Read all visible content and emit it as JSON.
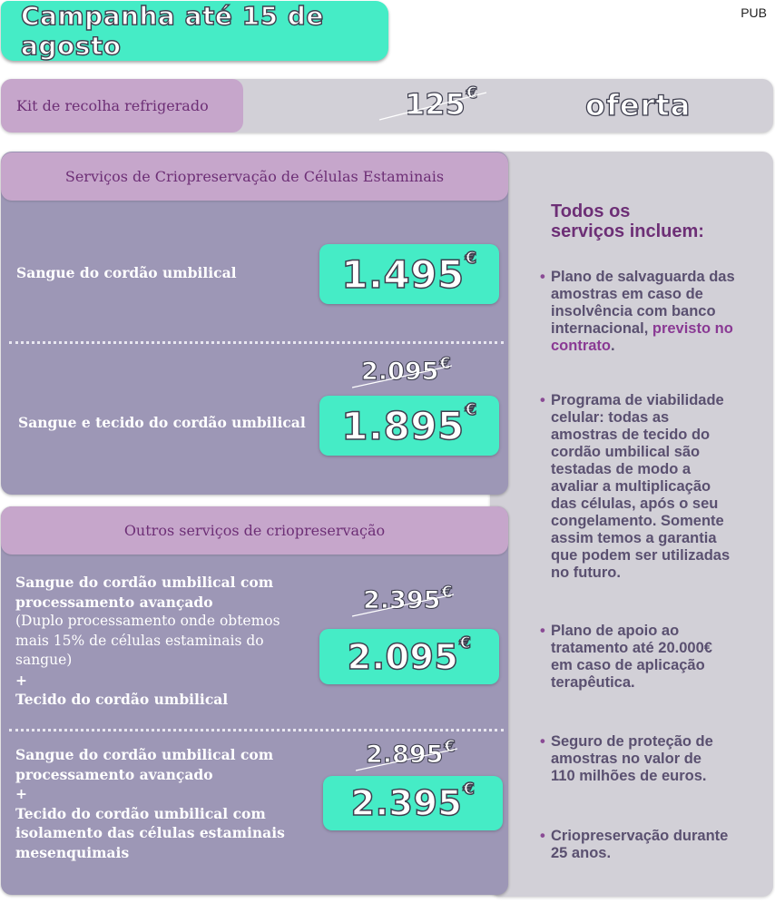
{
  "pub_label": "PUB",
  "campaign_text": "Campanha até 15 de agosto",
  "kit": {
    "label": "Kit de recolha refrigerado",
    "old_price": "125",
    "currency": "€",
    "offer": "oferta"
  },
  "stem": {
    "header": "Serviços de Criopreservação de Células Estaminais",
    "items": [
      {
        "label": "Sangue do cordão umbilical",
        "price": "1.495"
      },
      {
        "label": "Sangue e tecido do cordão umbilical",
        "old_price": "2.095",
        "price": "1.895"
      }
    ]
  },
  "other": {
    "header": "Outros serviços de criopreservação",
    "items": [
      {
        "line1": "Sangue do cordão umbilical com",
        "line2": "processamento avançado",
        "note1": "(Duplo processamento onde obtemos",
        "note2": "mais 15% de células estaminais do",
        "note3": "sangue)",
        "plus": "+",
        "line3": "Tecido do cordão umbilical",
        "old_price": "2.395",
        "price": "2.095"
      },
      {
        "line1": "Sangue do cordão umbilical com",
        "line2": "processamento avançado",
        "plus": "+",
        "line3": "Tecido do cordão umbilical com",
        "line4": "isolamento das células estaminais",
        "line5": "mesenquimais",
        "old_price": "2.895",
        "price": "2.395"
      }
    ]
  },
  "includes": {
    "title_line1": "Todos os",
    "title_line2": "serviços incluem:",
    "bullet_char": "•",
    "b1": [
      "Plano de salvaguarda das",
      "amostras em caso de",
      "insolvência com banco",
      "internacional, ",
      "previsto no",
      "contrato",
      "."
    ],
    "b2": [
      "Programa de viabilidade",
      "celular: todas as",
      "amostras de tecido do",
      "cordão umbilical são",
      "testadas de modo a",
      "avaliar a multiplicação",
      "das células, após o seu",
      "congelamento. Somente",
      "assim temos a garantia",
      "que podem ser utilizadas",
      "no futuro."
    ],
    "b3": [
      "Plano de apoio ao",
      "tratamento até 20.000€",
      "em caso de aplicação",
      "terapêutica."
    ],
    "b4": [
      "Seguro de proteção de",
      "amostras no valor de",
      "110 milhões de euros."
    ],
    "b5": [
      "Criopreservação durante",
      "25 anos."
    ]
  },
  "colors": {
    "teal": "#45ecc6",
    "lilac": "#c6a6cb",
    "panel": "#9d97b6",
    "grey": "#d2d0d7",
    "purple": "#6d2f76"
  }
}
